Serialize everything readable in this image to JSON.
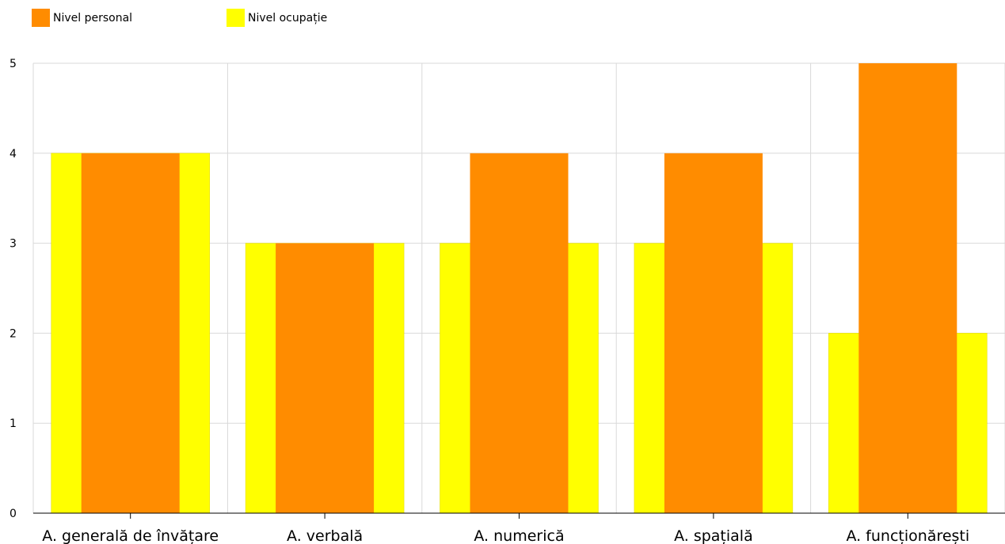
{
  "chart_data": {
    "type": "bar",
    "categories": [
      "A. generală de învățare",
      "A. verbală",
      "A. numerică",
      "A. spațială",
      "A. funcționărești"
    ],
    "series": [
      {
        "name": "Nivel ocupație",
        "color": "#ffff00",
        "values": [
          4,
          3,
          3,
          3,
          2
        ]
      },
      {
        "name": "Nivel personal",
        "color": "#ff8c00",
        "values": [
          4,
          3,
          4,
          4,
          5
        ]
      }
    ],
    "ylim": [
      0,
      5
    ],
    "yticks": [
      "0",
      "1",
      "2",
      "3",
      "4",
      "5"
    ],
    "grid": true,
    "legend_position": "top-left"
  },
  "legend": {
    "items": [
      {
        "label": "Nivel personal",
        "color": "#ff8c00"
      },
      {
        "label": "Nivel ocupație",
        "color": "#ffff00"
      }
    ]
  }
}
